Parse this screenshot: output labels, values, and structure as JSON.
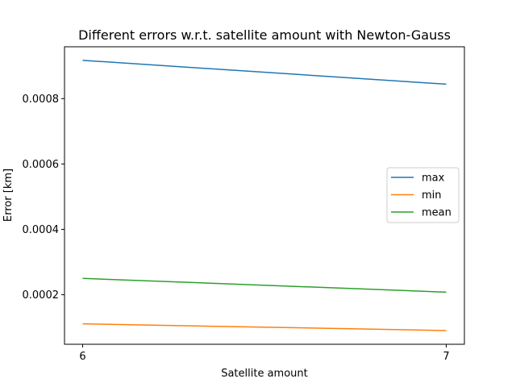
{
  "chart_data": {
    "type": "line",
    "title": "Different errors w.r.t. satellite amount with Newton-Gauss",
    "xlabel": "Satellite amount",
    "ylabel": "Error [km]",
    "x": [
      6,
      7
    ],
    "xticks": [
      6,
      7
    ],
    "xtick_labels": [
      "6",
      "7"
    ],
    "yticks": [
      0.0002,
      0.0004,
      0.0006,
      0.0008
    ],
    "ytick_labels": [
      "0.0002",
      "0.0004",
      "0.0006",
      "0.0008"
    ],
    "xlim": [
      5.95,
      7.05
    ],
    "ylim": [
      4.85e-05,
      0.0009585
    ],
    "grid": false,
    "legend_position": "center-right",
    "series": [
      {
        "name": "max",
        "color": "#1f77b4",
        "values": [
          0.000917,
          0.000844
        ]
      },
      {
        "name": "min",
        "color": "#ff7f0e",
        "values": [
          0.000111,
          9.05e-05
        ]
      },
      {
        "name": "mean",
        "color": "#2ca02c",
        "values": [
          0.00025,
          0.000208
        ]
      }
    ]
  }
}
